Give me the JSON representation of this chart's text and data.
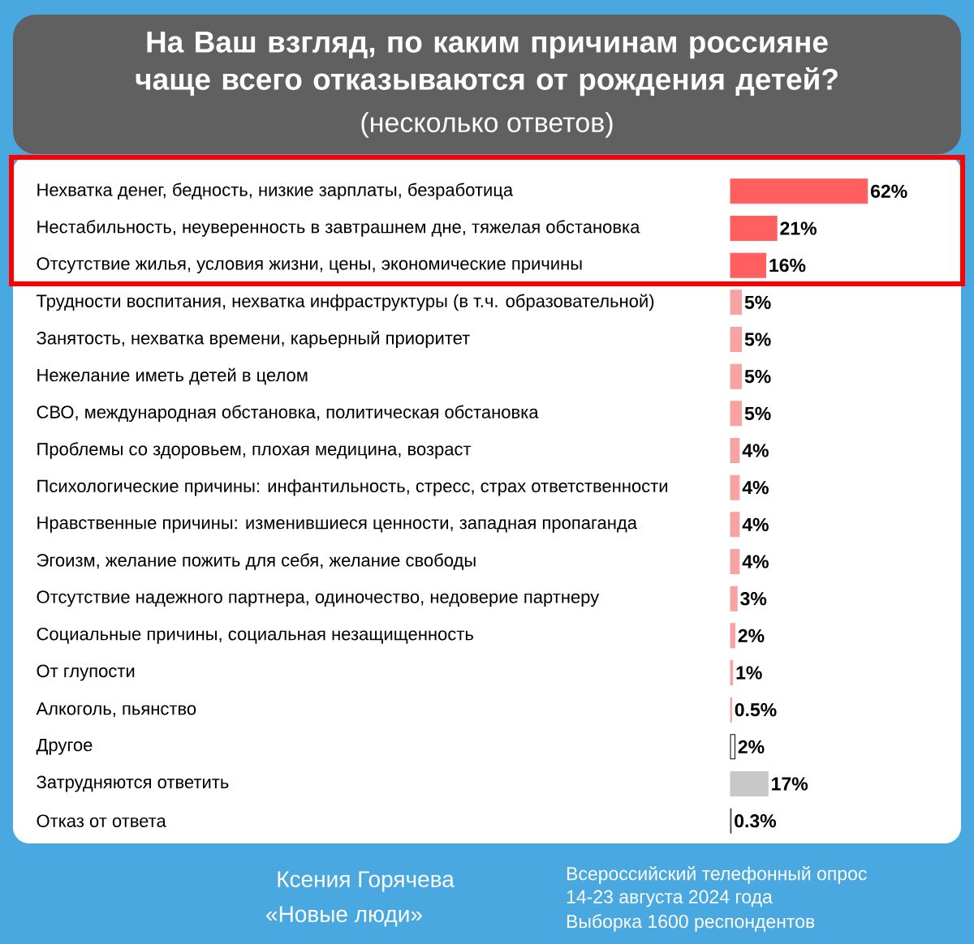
{
  "chart_data": {
    "type": "bar",
    "orientation": "horizontal",
    "title": "На Ваш взгляд, по каким причинам россияне чаще всего отказываются от рождения детей?",
    "subtitle": "(несколько  ответов)",
    "categories": [
      "Нехватка денег, бедность, низкие зарплаты, безработица",
      "Нестабильность, неуверенность в завтрашнем дне, тяжелая обстановка",
      "Отсутствие жилья, условия жизни, цены, экономические причины",
      "Трудности воспитания, нехватка инфраструктуры (в т.ч. образовательной)",
      "Занятость, нехватка времени, карьерный приоритет",
      "Нежелание иметь детей в целом",
      "СВО, международная обстановка, политическая обстановка",
      "Проблемы со здоровьем, плохая медицина, возраст",
      "Психологические причины: инфантильность, стресс, страх ответственности",
      "Нравственные причины: изменившиеся ценности, западная пропаганда",
      "Эгоизм, желание пожить для себя, желание свободы",
      "Отсутствие надежного партнера, одиночество, недоверие партнеру",
      "Социальные причины, социальная незащищенность",
      "От глупости",
      "Алкоголь, пьянство",
      "Другое",
      "Затрудняются ответить",
      "Отказ от ответа"
    ],
    "values": [
      62,
      21,
      16,
      5,
      5,
      5,
      5,
      4,
      4,
      4,
      4,
      3,
      2,
      1,
      0.5,
      2,
      17,
      0.3
    ],
    "value_labels": [
      "62%",
      "21%",
      "16%",
      "5%",
      "5%",
      "5%",
      "5%",
      "4%",
      "4%",
      "4%",
      "4%",
      "3%",
      "2%",
      "1%",
      "0.5%",
      "2%",
      "17%",
      "0.3%"
    ],
    "colors": [
      "#ff5f5f",
      "#ff5f5f",
      "#ff5f5f",
      "#f8a3a3",
      "#f8a3a3",
      "#f8a3a3",
      "#f8a3a3",
      "#f8a3a3",
      "#f8a3a3",
      "#f8a3a3",
      "#f8a3a3",
      "#f8a3a3",
      "#f8a3a3",
      "#f8a3a3",
      "#f8a3a3",
      "#ffffff",
      "#c8c8c8",
      "#404040"
    ],
    "tick_labels": "y",
    "annotations": [
      "Ксения Горячева",
      "«Новые люди»",
      "Всероссийский телефонный опрос",
      "14-23 августа 2024 года",
      "Выборка 1600 респондентов"
    ]
  }
}
